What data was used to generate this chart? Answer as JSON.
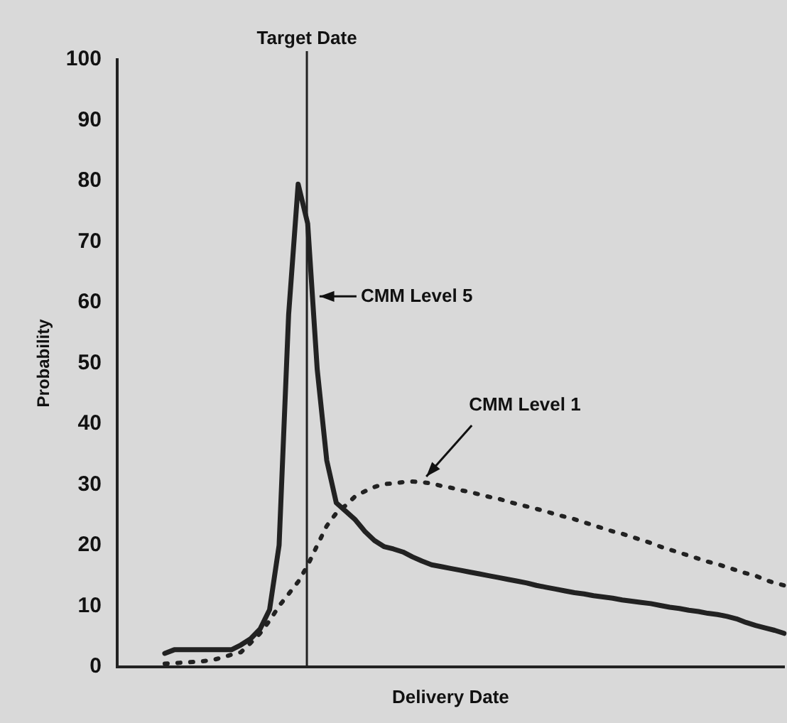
{
  "chart_data": {
    "type": "line",
    "xlabel": "Delivery Date",
    "ylabel": "Probability",
    "categories": [
      null,
      null,
      null,
      null,
      null,
      null,
      null,
      null,
      null,
      null,
      null,
      null,
      null,
      null,
      null,
      null,
      null,
      null,
      null,
      null,
      null,
      null,
      null,
      null,
      null,
      null,
      null,
      null,
      null,
      null,
      null,
      null,
      null,
      null,
      null,
      null,
      null,
      null,
      null,
      null,
      null,
      null,
      null,
      null,
      null,
      null,
      null,
      null,
      null,
      null,
      null,
      null,
      null,
      null,
      null,
      null,
      null,
      null,
      null,
      null,
      null,
      null,
      null,
      null,
      null,
      null,
      null,
      null,
      null,
      null,
      null
    ],
    "series": [
      {
        "name": "CMM Level 5",
        "color": "#222222",
        "line_style": "solid",
        "values": [
          null,
          null,
          null,
          null,
          null,
          2.2,
          2.8,
          2.8,
          2.8,
          2.8,
          2.8,
          2.8,
          2.8,
          3.6,
          4.6,
          6.2,
          9.4,
          20,
          58,
          79.5,
          73,
          49,
          34,
          27,
          25.6,
          24.2,
          22.3,
          20.8,
          19.8,
          19.4,
          18.9,
          18.1,
          17.4,
          16.8,
          16.5,
          16.2,
          15.9,
          15.6,
          15.3,
          15,
          14.7,
          14.4,
          14.1,
          13.8,
          13.4,
          13.1,
          12.8,
          12.5,
          12.2,
          12,
          11.7,
          11.5,
          11.3,
          11,
          10.8,
          10.6,
          10.4,
          10.1,
          9.8,
          9.6,
          9.3,
          9.1,
          8.8,
          8.6,
          8.3,
          7.9,
          7.3,
          6.8,
          6.4,
          6,
          5.5
        ]
      },
      {
        "name": "CMM Level 1",
        "color": "#222222",
        "line_style": "dotted",
        "values": [
          null,
          null,
          null,
          null,
          null,
          0.5,
          0.6,
          0.7,
          0.8,
          0.9,
          1.1,
          1.5,
          2,
          2.4,
          3.9,
          5.5,
          7.6,
          10,
          12,
          14,
          16.7,
          20,
          23.2,
          25.3,
          26.6,
          28.1,
          28.9,
          29.6,
          30.1,
          30.2,
          30.4,
          30.5,
          30.4,
          30.2,
          29.8,
          29.5,
          29.1,
          28.8,
          28.4,
          28,
          27.7,
          27.2,
          26.8,
          26.4,
          26,
          25.6,
          25.1,
          24.7,
          24.3,
          23.8,
          23.3,
          22.8,
          22.3,
          21.9,
          21.4,
          20.9,
          20.4,
          19.8,
          19.3,
          18.8,
          18.3,
          17.8,
          17.3,
          16.9,
          16.4,
          15.9,
          15.4,
          15,
          14.3,
          13.8,
          13.4
        ]
      }
    ],
    "ylim": [
      0,
      100
    ],
    "yticks": [
      0,
      10,
      20,
      30,
      40,
      50,
      60,
      70,
      80,
      90,
      100
    ],
    "annotations": [
      "Target Date"
    ],
    "tick_labels": "y",
    "grid": false,
    "legend": false,
    "marker": "none"
  }
}
